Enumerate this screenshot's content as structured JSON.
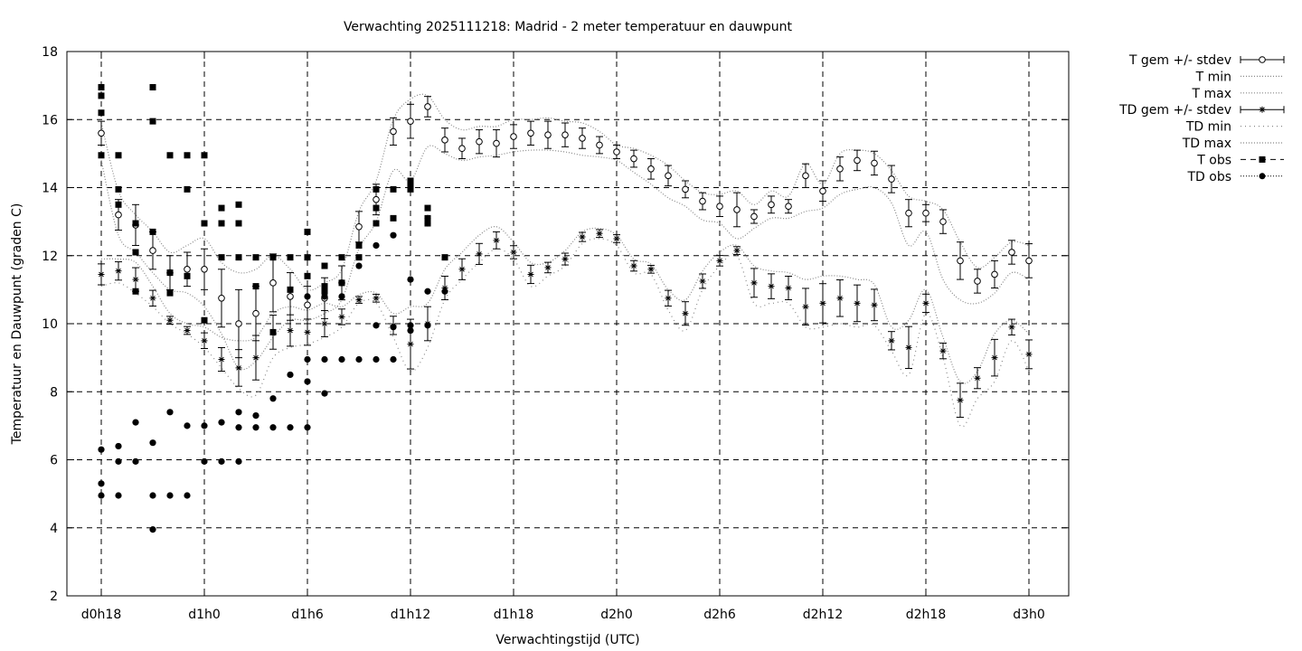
{
  "chart_data": {
    "type": "line",
    "title": "Verwachting 2025111218: Madrid - 2 meter temperatuur en dauwpunt",
    "xlabel": "Verwachtingstijd (UTC)",
    "ylabel": "Temperatuur en Dauwpunt (graden C)",
    "x_unit": "hours since d0h0",
    "xlim": [
      18,
      75
    ],
    "ylim": [
      2,
      18
    ],
    "yticks": [
      2,
      4,
      6,
      8,
      10,
      12,
      14,
      16,
      18
    ],
    "xticks": [
      {
        "x": 18,
        "label": "d0h18"
      },
      {
        "x": 24,
        "label": "d1h0"
      },
      {
        "x": 30,
        "label": "d1h6"
      },
      {
        "x": 36,
        "label": "d1h12"
      },
      {
        "x": 42,
        "label": "d1h18"
      },
      {
        "x": 48,
        "label": "d2h0"
      },
      {
        "x": 54,
        "label": "d2h6"
      },
      {
        "x": 60,
        "label": "d2h12"
      },
      {
        "x": 66,
        "label": "d2h18"
      },
      {
        "x": 72,
        "label": "d3h0"
      }
    ],
    "grid": true,
    "legend_position": "outside-top-right",
    "legend": [
      {
        "label": "T gem +/- stdev",
        "style": "errorbar-circle"
      },
      {
        "label": "T min",
        "style": "dotted"
      },
      {
        "label": "T max",
        "style": "dotted"
      },
      {
        "label": "TD gem +/- stdev",
        "style": "errorbar-star"
      },
      {
        "label": "TD min",
        "style": "dotted-sparse"
      },
      {
        "label": "TD max",
        "style": "dotted"
      },
      {
        "label": "T obs",
        "style": "dashed-square"
      },
      {
        "label": "TD obs",
        "style": "dotted-dot"
      }
    ],
    "x": [
      18,
      19,
      20,
      21,
      22,
      23,
      24,
      25,
      26,
      27,
      28,
      29,
      30,
      31,
      32,
      33,
      34,
      35,
      36,
      37,
      38,
      39,
      40,
      41,
      42,
      43,
      44,
      45,
      46,
      47,
      48,
      49,
      50,
      51,
      52,
      53,
      54,
      55,
      56,
      57,
      58,
      59,
      60,
      61,
      62,
      63,
      64,
      65,
      66,
      67,
      68,
      69,
      70,
      71,
      72
    ],
    "series": [
      {
        "name": "T gem +/- stdev",
        "values": [
          15.6,
          13.2,
          12.9,
          12.15,
          11.5,
          11.6,
          11.6,
          10.75,
          10.0,
          10.3,
          11.2,
          10.8,
          10.55,
          10.75,
          11.2,
          12.85,
          13.65,
          15.65,
          15.95,
          16.38,
          15.4,
          15.15,
          15.35,
          15.3,
          15.5,
          15.6,
          15.55,
          15.55,
          15.45,
          15.25,
          15.05,
          14.85,
          14.55,
          14.35,
          13.95,
          13.6,
          13.45,
          13.35,
          13.15,
          13.5,
          13.45,
          14.35,
          13.9,
          14.55,
          14.8,
          14.72,
          14.25,
          13.25,
          13.25,
          13.0,
          11.85,
          11.25,
          11.45,
          12.1,
          11.85
        ],
        "stdev": [
          0.35,
          0.45,
          0.6,
          0.55,
          0.5,
          0.5,
          0.6,
          0.85,
          1.0,
          0.8,
          0.85,
          0.7,
          0.55,
          0.6,
          0.5,
          0.45,
          0.45,
          0.4,
          0.5,
          0.3,
          0.35,
          0.3,
          0.35,
          0.4,
          0.35,
          0.35,
          0.4,
          0.35,
          0.3,
          0.25,
          0.2,
          0.25,
          0.3,
          0.3,
          0.25,
          0.25,
          0.3,
          0.5,
          0.2,
          0.25,
          0.2,
          0.35,
          0.3,
          0.35,
          0.3,
          0.35,
          0.4,
          0.4,
          0.25,
          0.35,
          0.55,
          0.35,
          0.4,
          0.35,
          0.5
        ]
      },
      {
        "name": "T min",
        "values": [
          14.8,
          12.6,
          12.1,
          11.5,
          11.0,
          10.9,
          10.5,
          9.7,
          8.7,
          8.9,
          9.6,
          10.1,
          10.1,
          10.3,
          10.7,
          12.2,
          13.0,
          14.5,
          14.2,
          15.2,
          15.0,
          14.8,
          14.9,
          14.95,
          15.05,
          15.1,
          15.1,
          15.05,
          14.95,
          14.9,
          14.8,
          14.45,
          14.1,
          13.7,
          13.45,
          13.05,
          12.95,
          12.5,
          12.8,
          13.1,
          13.1,
          13.3,
          13.4,
          13.8,
          13.95,
          14.0,
          13.55,
          12.3,
          12.7,
          11.3,
          10.7,
          10.6,
          10.9,
          11.5,
          11.3
        ]
      },
      {
        "name": "T max",
        "values": [
          15.9,
          13.9,
          13.2,
          12.7,
          12.1,
          12.3,
          12.5,
          11.8,
          11.5,
          11.6,
          12.0,
          11.6,
          11.0,
          11.2,
          11.6,
          13.3,
          14.2,
          16.0,
          16.6,
          16.7,
          16.0,
          15.7,
          15.8,
          15.8,
          16.0,
          16.0,
          16.05,
          15.95,
          15.9,
          15.65,
          15.25,
          15.15,
          14.95,
          14.65,
          14.2,
          13.85,
          13.8,
          13.9,
          13.5,
          13.9,
          13.75,
          14.7,
          14.1,
          15.0,
          15.1,
          15.0,
          14.5,
          13.75,
          13.6,
          13.35,
          12.4,
          11.65,
          11.95,
          12.4,
          12.3
        ]
      },
      {
        "name": "TD gem +/- stdev",
        "values": [
          11.45,
          11.55,
          11.3,
          10.75,
          10.1,
          9.8,
          9.5,
          8.95,
          8.7,
          9.0,
          9.75,
          9.8,
          9.75,
          10.0,
          10.2,
          10.7,
          10.75,
          9.95,
          9.4,
          10.0,
          11.05,
          11.6,
          12.05,
          12.45,
          12.1,
          11.45,
          11.65,
          11.9,
          12.55,
          12.65,
          12.5,
          11.7,
          11.6,
          10.75,
          10.3,
          11.25,
          11.85,
          12.15,
          11.2,
          11.1,
          11.05,
          10.5,
          10.6,
          10.75,
          10.6,
          10.55,
          9.5,
          9.3,
          10.6,
          9.2,
          7.75,
          8.4,
          9.0,
          9.9,
          9.1
        ]
      },
      {
        "name": "TD min",
        "values": [
          11.1,
          11.2,
          10.9,
          10.5,
          10.0,
          9.7,
          9.3,
          8.7,
          8.1,
          7.9,
          9.0,
          9.3,
          9.4,
          9.6,
          9.9,
          10.6,
          10.6,
          9.6,
          8.6,
          9.3,
          10.7,
          11.3,
          11.8,
          12.2,
          11.9,
          11.1,
          11.4,
          11.7,
          12.35,
          12.5,
          12.3,
          11.5,
          11.45,
          10.4,
          9.8,
          11.0,
          11.7,
          12.0,
          10.6,
          10.6,
          10.6,
          9.9,
          9.9,
          10.0,
          9.9,
          9.95,
          9.2,
          8.5,
          10.3,
          9.0,
          7.0,
          7.8,
          8.3,
          9.5,
          8.6
        ]
      },
      {
        "name": "TD max",
        "values": [
          11.9,
          11.9,
          11.8,
          11.1,
          10.3,
          10.0,
          9.9,
          9.6,
          9.5,
          9.6,
          10.3,
          10.5,
          10.4,
          10.6,
          10.5,
          10.85,
          10.9,
          10.3,
          10.5,
          10.6,
          11.6,
          12.1,
          12.6,
          12.85,
          12.4,
          11.8,
          11.8,
          12.15,
          12.7,
          12.8,
          12.6,
          11.9,
          11.75,
          11.0,
          10.7,
          11.55,
          12.1,
          12.3,
          11.7,
          11.55,
          11.5,
          11.3,
          11.4,
          11.4,
          11.3,
          11.15,
          9.9,
          10.1,
          11.0,
          9.6,
          8.3,
          8.6,
          9.7,
          10.1,
          9.7
        ]
      },
      {
        "name": "T obs",
        "points": [
          [
            18,
            14.95
          ],
          [
            18,
            16.2
          ],
          [
            18,
            16.7
          ],
          [
            18,
            16.95
          ],
          [
            19,
            14.95
          ],
          [
            19,
            13.95
          ],
          [
            19,
            13.5
          ],
          [
            20,
            12.95
          ],
          [
            20,
            12.1
          ],
          [
            20,
            10.95
          ],
          [
            21,
            16.95
          ],
          [
            21,
            15.95
          ],
          [
            21,
            12.7
          ],
          [
            22,
            14.95
          ],
          [
            22,
            11.5
          ],
          [
            22,
            10.9
          ],
          [
            23,
            14.95
          ],
          [
            23,
            13.95
          ],
          [
            23,
            11.4
          ],
          [
            24,
            14.95
          ],
          [
            24,
            12.95
          ],
          [
            24,
            10.1
          ],
          [
            25,
            13.4
          ],
          [
            25,
            12.95
          ],
          [
            25,
            11.95
          ],
          [
            26,
            13.5
          ],
          [
            26,
            12.95
          ],
          [
            26,
            11.95
          ],
          [
            27,
            11.95
          ],
          [
            27,
            11.1
          ],
          [
            28,
            11.95
          ],
          [
            28,
            9.75
          ],
          [
            29,
            11.95
          ],
          [
            29,
            11.0
          ],
          [
            30,
            12.7
          ],
          [
            30,
            11.95
          ],
          [
            30,
            11.4
          ],
          [
            31,
            11.7
          ],
          [
            31,
            11.1
          ],
          [
            31,
            10.95
          ],
          [
            32,
            11.95
          ],
          [
            32,
            11.2
          ],
          [
            33,
            11.95
          ],
          [
            33,
            12.3
          ],
          [
            34,
            13.95
          ],
          [
            34,
            13.4
          ],
          [
            34,
            12.95
          ],
          [
            35,
            13.95
          ],
          [
            35,
            13.1
          ],
          [
            36,
            14.2
          ],
          [
            36,
            14.05
          ],
          [
            36,
            13.95
          ],
          [
            37,
            13.4
          ],
          [
            37,
            13.1
          ],
          [
            37,
            12.95
          ],
          [
            38,
            11.95
          ]
        ]
      },
      {
        "name": "TD obs",
        "points": [
          [
            18,
            4.95
          ],
          [
            18,
            5.3
          ],
          [
            18,
            6.3
          ],
          [
            19,
            4.95
          ],
          [
            19,
            5.95
          ],
          [
            19,
            6.4
          ],
          [
            20,
            5.95
          ],
          [
            20,
            7.1
          ],
          [
            21,
            3.95
          ],
          [
            21,
            4.95
          ],
          [
            21,
            6.5
          ],
          [
            22,
            4.95
          ],
          [
            22,
            7.4
          ],
          [
            23,
            4.95
          ],
          [
            23,
            7.0
          ],
          [
            24,
            5.95
          ],
          [
            24,
            7.0
          ],
          [
            25,
            5.95
          ],
          [
            25,
            7.1
          ],
          [
            26,
            5.95
          ],
          [
            26,
            6.95
          ],
          [
            26,
            7.4
          ],
          [
            27,
            6.95
          ],
          [
            27,
            7.3
          ],
          [
            28,
            6.95
          ],
          [
            28,
            7.8
          ],
          [
            29,
            6.95
          ],
          [
            29,
            8.5
          ],
          [
            30,
            6.95
          ],
          [
            30,
            8.3
          ],
          [
            30,
            8.95
          ],
          [
            30,
            10.8
          ],
          [
            31,
            7.95
          ],
          [
            31,
            8.95
          ],
          [
            31,
            10.8
          ],
          [
            32,
            8.95
          ],
          [
            32,
            10.8
          ],
          [
            33,
            8.95
          ],
          [
            33,
            11.7
          ],
          [
            34,
            8.95
          ],
          [
            34,
            9.95
          ],
          [
            34,
            12.3
          ],
          [
            35,
            8.95
          ],
          [
            35,
            9.9
          ],
          [
            35,
            12.6
          ],
          [
            36,
            9.8
          ],
          [
            36,
            9.95
          ],
          [
            36,
            11.3
          ],
          [
            37,
            9.95
          ],
          [
            37,
            10.95
          ],
          [
            37,
            12.95
          ],
          [
            37,
            13.1
          ],
          [
            38,
            10.95
          ]
        ]
      }
    ]
  }
}
